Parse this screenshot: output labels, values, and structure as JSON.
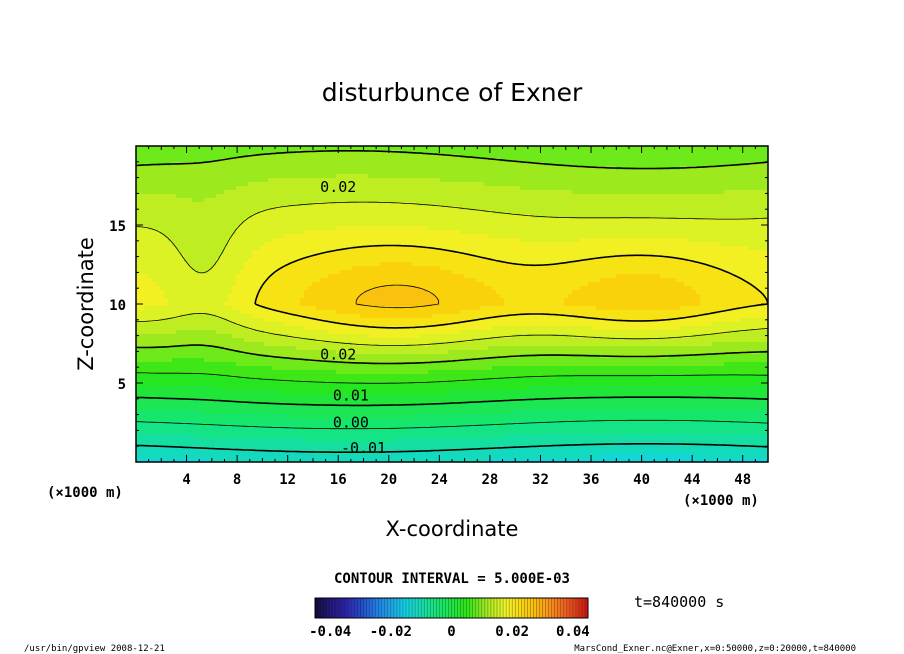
{
  "chart_data": {
    "type": "contour",
    "title": "disturbunce of Exner",
    "xlabel": "X-coordinate",
    "ylabel": "Z-coordinate",
    "x_unit": "(×1000 m)",
    "y_unit": "(×1000 m)",
    "xlim": [
      0,
      50
    ],
    "ylim": [
      0,
      20
    ],
    "x_ticks": [
      4,
      8,
      12,
      16,
      20,
      24,
      28,
      32,
      36,
      40,
      44,
      48
    ],
    "y_ticks": [
      5,
      10,
      15
    ],
    "contour_interval_text": "CONTOUR INTERVAL = 5.000E-03",
    "contour_labels": [
      {
        "text": "0.02",
        "x": 16,
        "z": 17.4
      },
      {
        "text": "0.02",
        "x": 16,
        "z": 6.8
      },
      {
        "text": "0.01",
        "x": 17,
        "z": 4.2
      },
      {
        "text": "0.00",
        "x": 17,
        "z": 2.5
      },
      {
        "text": "-0.01",
        "x": 18,
        "z": 0.9
      }
    ],
    "maxima": [
      {
        "x": 21,
        "z": 10.0
      },
      {
        "x": 40,
        "z": 10.3
      }
    ],
    "colorbar": {
      "ticks": [
        "-0.04",
        "-0.02",
        "0",
        "0.02",
        "0.04"
      ],
      "range": [
        -0.045,
        0.045
      ]
    },
    "time_label": "t=840000 s",
    "footer_left": "/usr/bin/gpview   2008-12-21",
    "footer_right": "MarsCond_Exner.nc@Exner,x=0:50000,z=0:20000,t=840000"
  }
}
